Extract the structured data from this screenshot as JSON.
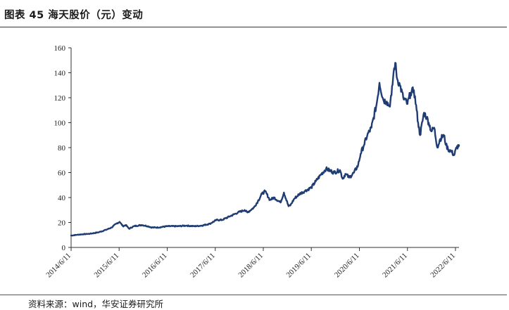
{
  "title": "图表 45  海天股价（元）变动",
  "source": "资料来源：wind，华安证券研究所",
  "colors": {
    "line": "#1f3d73",
    "axis": "#333333"
  },
  "chart_data": {
    "type": "line",
    "title": "图表 45  海天股价（元）变动",
    "xlabel": "",
    "ylabel": "",
    "ylim": [
      0,
      160
    ],
    "yticks": [
      0,
      20,
      40,
      60,
      80,
      100,
      120,
      140,
      160
    ],
    "xlim": [
      "2014-06-11",
      "2022-07-08"
    ],
    "xticks": [
      "2014/6/11",
      "2015/6/11",
      "2016/6/11",
      "2017/6/11",
      "2018/6/11",
      "2019/6/11",
      "2020/6/11",
      "2021/6/11",
      "2022/6/11"
    ],
    "grid": false,
    "legend": "none",
    "series": [
      {
        "x": [
          "2014-06-11",
          "2014-07-15",
          "2014-09-01",
          "2014-11-01",
          "2015-01-01",
          "2015-03-01",
          "2015-04-15",
          "2015-05-20",
          "2015-06-15",
          "2015-07-10",
          "2015-08-01",
          "2015-08-26",
          "2015-10-01",
          "2015-12-01",
          "2016-01-15",
          "2016-02-15",
          "2016-04-01",
          "2016-06-11",
          "2016-09-01",
          "2016-11-01",
          "2017-01-01",
          "2017-03-01",
          "2017-05-01",
          "2017-06-20",
          "2017-08-01",
          "2017-10-01",
          "2017-12-01",
          "2018-01-20",
          "2018-02-10",
          "2018-04-01",
          "2018-05-01",
          "2018-06-01",
          "2018-06-25",
          "2018-08-01",
          "2018-09-01",
          "2018-10-20",
          "2018-11-15",
          "2018-12-20",
          "2019-01-05",
          "2019-02-01",
          "2019-03-15",
          "2019-04-20",
          "2019-06-11",
          "2019-07-15",
          "2019-08-20",
          "2019-10-01",
          "2019-12-01",
          "2020-01-15",
          "2020-02-05",
          "2020-02-25",
          "2020-03-25",
          "2020-05-01",
          "2020-06-01",
          "2020-06-20",
          "2020-07-15",
          "2020-08-10",
          "2020-09-10",
          "2020-10-20",
          "2020-11-10",
          "2020-12-10",
          "2021-01-05",
          "2021-01-25",
          "2021-02-10",
          "2021-02-25",
          "2021-03-10",
          "2021-03-25",
          "2021-04-15",
          "2021-05-10",
          "2021-06-11",
          "2021-07-05",
          "2021-07-30",
          "2021-08-20",
          "2021-08-31",
          "2021-09-15",
          "2021-10-15",
          "2021-11-05",
          "2021-11-20",
          "2021-12-10",
          "2021-12-31",
          "2022-01-25",
          "2022-02-15",
          "2022-03-15",
          "2022-04-01",
          "2022-04-15",
          "2022-05-10",
          "2022-06-01",
          "2022-06-20",
          "2022-07-08"
        ],
        "y": [
          9.5,
          10,
          10.5,
          11,
          12,
          14,
          16,
          19,
          20.5,
          17,
          18,
          15,
          17,
          18,
          17,
          16,
          16,
          17,
          17,
          17.5,
          17,
          17.5,
          19,
          22,
          22,
          25,
          28,
          30,
          28,
          32,
          37,
          43,
          45,
          38,
          40,
          36,
          44,
          33,
          34,
          39,
          43,
          45,
          48,
          53,
          58,
          63,
          60,
          62,
          55,
          59,
          56,
          60,
          66,
          75,
          82,
          90,
          96,
          115,
          132,
          118,
          117,
          113,
          122,
          140,
          148,
          135,
          130,
          120,
          115,
          124,
          126,
          110,
          100,
          90,
          108,
          104,
          100,
          93,
          96,
          80,
          87,
          90,
          82,
          79,
          77,
          74,
          80,
          82
        ]
      }
    ]
  }
}
